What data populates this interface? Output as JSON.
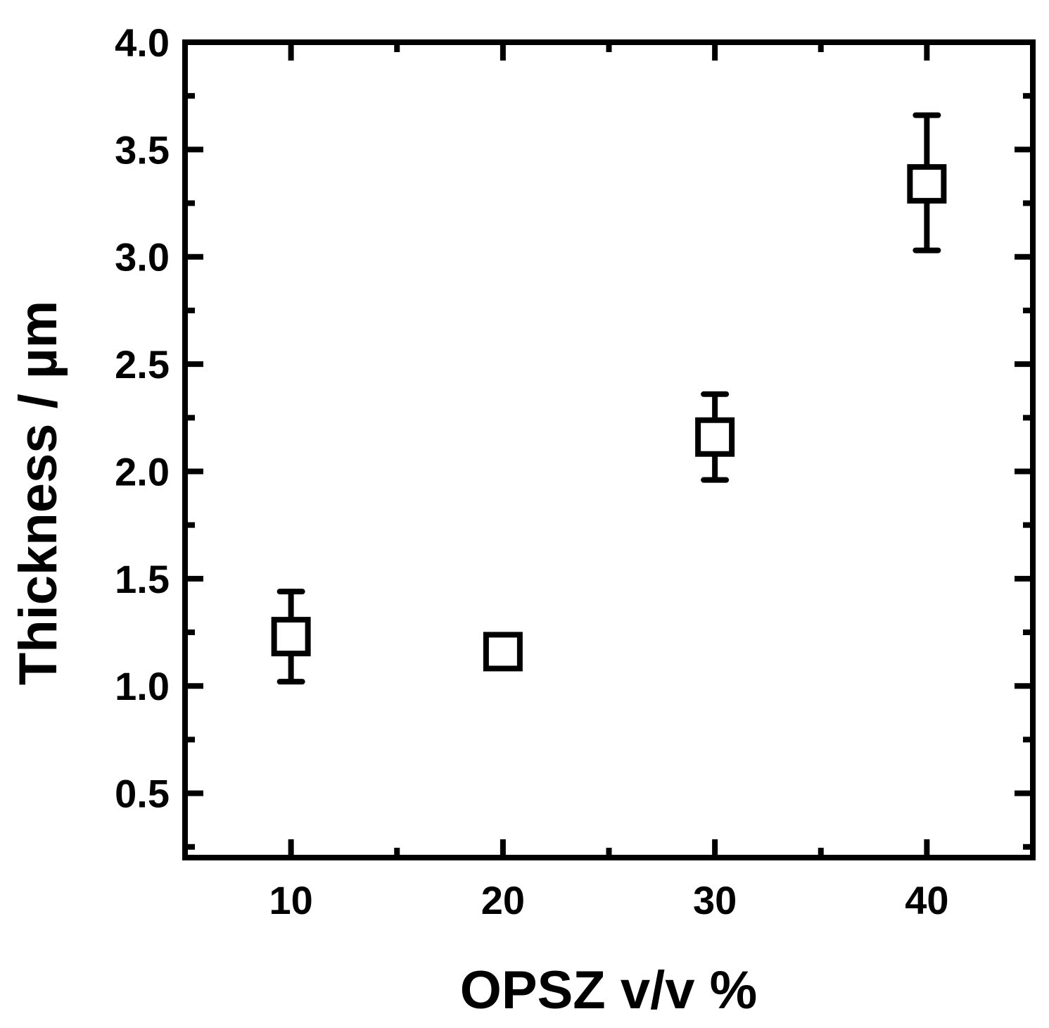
{
  "chart_data": {
    "type": "scatter",
    "title": "",
    "xlabel": "OPSZ v/v %",
    "ylabel": "Thickness / µm",
    "xlim": [
      5,
      45
    ],
    "ylim": [
      0.2,
      4.0
    ],
    "x_ticks": [
      10,
      20,
      30,
      40
    ],
    "x_tick_labels": [
      "10",
      "20",
      "30",
      "40"
    ],
    "y_ticks": [
      0.5,
      1.0,
      1.5,
      2.0,
      2.5,
      3.0,
      3.5,
      4.0
    ],
    "y_tick_labels": [
      "0.5",
      "1.0",
      "1.5",
      "2.0",
      "2.5",
      "3.0",
      "3.5",
      "4.0"
    ],
    "grid": false,
    "legend": "none",
    "marker": "open-square",
    "color": "#000000",
    "series": [
      {
        "x": [
          10,
          20,
          30,
          40
        ],
        "y": [
          1.23,
          1.16,
          2.16,
          3.34
        ],
        "y_err_low": [
          1.02,
          1.14,
          1.96,
          3.03
        ],
        "y_err_high": [
          1.44,
          1.18,
          2.36,
          3.66
        ]
      }
    ]
  }
}
